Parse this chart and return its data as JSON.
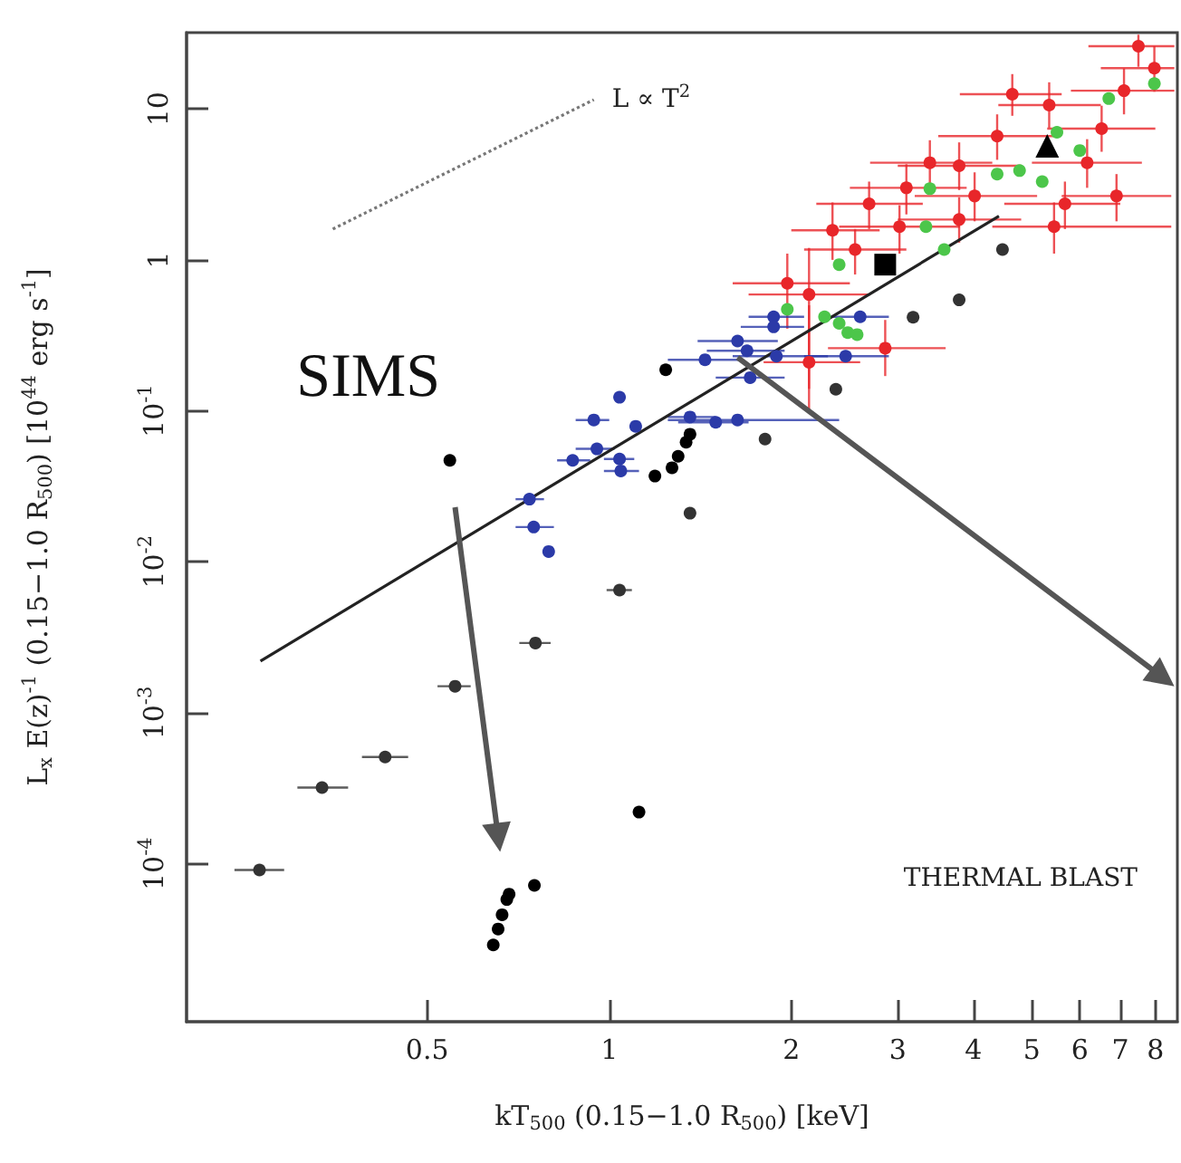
{
  "chart_data": {
    "type": "scatter",
    "xlabel": "kT$_{500}$ (0.15−1.0 R$_{500}$) [keV]",
    "ylabel": "L$_{x}$ E(z)$^{-1}$ (0.15−1.0 R$_{500}$) [10$^{44}$ erg s$^{-1}$]",
    "log": "xy",
    "grid": false,
    "legend": false,
    "xlim": [
      0.2,
      8.7
    ],
    "xticks": [
      0.5,
      1,
      2,
      3,
      4,
      5,
      6,
      7,
      8
    ],
    "ylim": [
      9e-06,
      32
    ],
    "yticks": [
      {
        "value": 0.0001,
        "label": "10$^{-4}$"
      },
      {
        "value": 0.001,
        "label": "10$^{-3}$"
      },
      {
        "value": 0.01,
        "label": "10$^{-2}$"
      },
      {
        "value": 0.1,
        "label": "10$^{-1}$"
      },
      1,
      10
    ],
    "annotations": [
      {
        "text": "SIMS",
        "x": 0.545,
        "y": 0.047
      },
      "THERMAL BLAST"
    ],
    "series": [
      {
        "type": "line",
        "color": "#222222",
        "marker": "none",
        "line_style": "solid",
        "x": [
          0.265,
          4.41
        ],
        "values": [
          0.0022,
          1.95
        ]
      },
      {
        "type": "line",
        "name": "L ∝ T$^{2}$",
        "color": "#777777",
        "marker": "none",
        "line_style": "dotted",
        "x": [
          0.349,
          0.943
        ],
        "values": [
          1.6,
          11.5
        ]
      },
      {
        "color": "#e8262a",
        "marker": "circle",
        "x": [
          1.97,
          2.14,
          2.34,
          2.86,
          2.14,
          3.39,
          3.1,
          4.02,
          3.79,
          4.64,
          4.38,
          5.44,
          6.17,
          6.52,
          7.1,
          7.5,
          7.97,
          5.34,
          3.79,
          3.02,
          2.55,
          2.69,
          5.67,
          6.9
        ],
        "values": [
          0.7,
          0.21,
          1.57,
          0.26,
          0.59,
          4.4,
          3.0,
          2.65,
          1.85,
          12.5,
          6.6,
          1.66,
          4.4,
          7.4,
          13.2,
          26,
          18.6,
          10.6,
          4.2,
          1.66,
          1.17,
          2.35,
          2.35,
          2.65
        ],
        "xerrors": [
          [
            1.6,
            2.5
          ],
          [
            1.8,
            2.6
          ],
          [
            2.0,
            2.8
          ],
          [
            2.3,
            3.6
          ],
          [
            1.7,
            2.7
          ],
          [
            2.7,
            4.3
          ],
          [
            2.5,
            3.9
          ],
          [
            3.2,
            5.1
          ],
          [
            3.0,
            4.8
          ],
          [
            3.8,
            5.6
          ],
          [
            3.5,
            5.5
          ],
          [
            4.3,
            8.5
          ],
          [
            5.0,
            7.6
          ],
          [
            5.3,
            8.0
          ],
          [
            5.8,
            8.6
          ],
          [
            6.2,
            8.6
          ],
          [
            6.5,
            8.6
          ],
          [
            4.4,
            6.5
          ],
          [
            3.0,
            4.8
          ],
          [
            2.4,
            3.8
          ],
          [
            2.1,
            3.1
          ],
          [
            2.2,
            3.3
          ],
          [
            4.5,
            7.0
          ],
          [
            5.6,
            8.5
          ]
        ],
        "errors": [
          [
            0.35,
            1.1
          ],
          [
            0.1,
            0.5
          ],
          [
            1.0,
            2.4
          ],
          [
            0.17,
            0.4
          ],
          [
            0.14,
            1.2
          ],
          [
            3.0,
            6.2
          ],
          [
            2.0,
            4.3
          ],
          [
            1.8,
            3.8
          ],
          [
            1.3,
            2.6
          ],
          [
            9.0,
            17
          ],
          [
            4.6,
            9.2
          ],
          [
            1.1,
            2.4
          ],
          [
            3.0,
            6.3
          ],
          [
            5.2,
            10.5
          ],
          [
            9.2,
            18.5
          ],
          [
            19,
            31
          ],
          [
            13,
            26
          ],
          [
            7.5,
            15
          ],
          [
            2.9,
            6.0
          ],
          [
            1.1,
            2.3
          ],
          [
            0.8,
            1.6
          ],
          [
            1.6,
            3.3
          ],
          [
            1.6,
            3.3
          ],
          [
            1.8,
            3.7
          ]
        ]
      },
      {
        "color": "#4cc64a",
        "marker": "circle",
        "x": [
          1.97,
          2.4,
          2.27,
          2.48,
          3.39,
          3.34,
          3.58,
          4.38,
          4.77,
          5.2,
          5.5,
          6.7,
          6.0,
          7.97,
          2.4,
          2.57
        ],
        "values": [
          0.47,
          0.93,
          0.42,
          0.33,
          2.96,
          1.66,
          1.17,
          3.7,
          3.9,
          3.3,
          7.0,
          11.7,
          5.3,
          14.7,
          0.38,
          0.32
        ]
      },
      {
        "color": "#2b3aa8",
        "marker": "circle",
        "x": [
          0.738,
          0.75,
          0.794,
          0.87,
          0.954,
          0.943,
          1.04,
          1.04,
          1.045,
          1.106,
          1.36,
          1.5,
          1.63,
          1.44,
          1.63,
          1.69,
          1.71,
          1.87,
          1.89,
          1.87,
          2.46,
          2.6
        ],
        "values": [
          0.026,
          0.017,
          0.0117,
          0.047,
          0.056,
          0.087,
          0.123,
          0.048,
          0.04,
          0.079,
          0.091,
          0.084,
          0.087,
          0.218,
          0.29,
          0.25,
          0.166,
          0.42,
          0.23,
          0.36,
          0.23,
          0.42
        ],
        "xerrors": [
          [
            0.7,
            0.78
          ],
          [
            0.7,
            0.81
          ],
          null,
          [
            0.82,
            0.93
          ],
          [
            0.88,
            1.02
          ],
          [
            0.88,
            1.0
          ],
          null,
          [
            0.98,
            1.1
          ],
          [
            0.98,
            1.12
          ],
          null,
          [
            1.25,
            1.5
          ],
          [
            1.3,
            1.7
          ],
          [
            1.25,
            2.4
          ],
          [
            1.25,
            1.65
          ],
          [
            1.4,
            1.9
          ],
          [
            1.45,
            1.95
          ],
          [
            1.5,
            1.95
          ],
          [
            1.7,
            2.1
          ],
          [
            1.6,
            2.3
          ],
          [
            1.65,
            2.1
          ],
          [
            2.1,
            2.9
          ],
          [
            2.3,
            2.9
          ]
        ]
      },
      {
        "color": "#333333",
        "marker": "circle",
        "x": [
          0.264,
          0.335,
          0.426,
          0.556,
          0.755,
          1.04,
          1.36,
          1.81,
          2.37,
          3.18,
          3.79,
          4.47
        ],
        "values": [
          9.1e-05,
          0.00032,
          0.00051,
          0.0015,
          0.0029,
          0.0065,
          0.021,
          0.065,
          0.139,
          0.417,
          0.543,
          1.17
        ],
        "xerrors": [
          [
            0.24,
            0.29
          ],
          [
            0.305,
            0.37
          ],
          [
            0.39,
            0.465
          ],
          [
            0.52,
            0.59
          ],
          [
            0.71,
            0.8
          ],
          [
            0.99,
            1.09
          ],
          null,
          null,
          null,
          null,
          null,
          null
        ]
      },
      {
        "color": "#000000",
        "marker": "circle",
        "x": [
          0.643,
          0.655,
          0.665,
          0.677,
          0.683,
          0.752,
          1.12,
          1.19,
          1.27,
          1.3,
          1.34,
          1.36
        ],
        "values": [
          2.9e-05,
          3.7e-05,
          4.6e-05,
          5.8e-05,
          6.3e-05,
          7.2e-05,
          0.00022,
          0.037,
          0.042,
          0.05,
          0.062,
          0.07
        ]
      },
      {
        "color": "#000000",
        "marker": "square",
        "x": [
          2.86
        ],
        "values": [
          0.93
        ]
      },
      {
        "color": "#000000",
        "marker": "triangle",
        "x": [
          5.3
        ],
        "values": [
          5.7
        ]
      },
      {
        "color": "#000000",
        "marker": "circle",
        "x": [
          0.545,
          1.24
        ],
        "values": [
          0.047,
          0.187
        ]
      }
    ]
  }
}
